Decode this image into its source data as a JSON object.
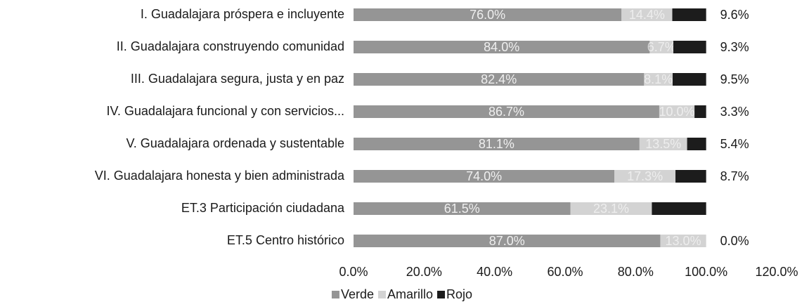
{
  "chart_data": {
    "type": "stacked-bar-horizontal",
    "categories": [
      "I. Guadalajara próspera e incluyente",
      "II. Guadalajara construyendo comunidad",
      "III. Guadalajara segura, justa y en paz",
      "IV. Guadalajara funcional y con servicios...",
      "V. Guadalajara ordenada y sustentable",
      "VI. Guadalajara honesta y bien administrada",
      "ET.3 Participación ciudadana",
      "ET.5 Centro histórico"
    ],
    "series": [
      {
        "name": "Verde",
        "color": "#959595",
        "values": [
          76.0,
          84.0,
          82.4,
          86.7,
          81.1,
          74.0,
          61.5,
          87.0
        ],
        "value_labels": [
          "76.0%",
          "84.0%",
          "82.4%",
          "86.7%",
          "81.1%",
          "74.0%",
          "61.5%",
          "87.0%"
        ]
      },
      {
        "name": "Amarillo",
        "color": "#d3d3d3",
        "values": [
          14.4,
          6.7,
          8.1,
          10.0,
          13.5,
          17.3,
          23.1,
          13.0
        ],
        "value_labels": [
          "14.4%",
          "6.7%",
          "8.1%",
          "10.0%",
          "13.5%",
          "17.3%",
          "23.1%",
          "13.0%"
        ]
      },
      {
        "name": "Rojo",
        "color": "#1c1c1c",
        "values": [
          9.6,
          9.3,
          9.5,
          3.3,
          5.4,
          8.7,
          15.4,
          0.0
        ],
        "value_labels": [
          "9.6%",
          "9.3%",
          "9.5%",
          "3.3%",
          "5.4%",
          "8.7%",
          null,
          "0.0%"
        ]
      }
    ],
    "xlim": [
      0,
      120
    ],
    "xticks": [
      {
        "value": 0,
        "label": "0.0%"
      },
      {
        "value": 20,
        "label": "20.0%"
      },
      {
        "value": 40,
        "label": "40.0%"
      },
      {
        "value": 60,
        "label": "60.0%"
      },
      {
        "value": 80,
        "label": "80.0%"
      },
      {
        "value": 100,
        "label": "100.0%"
      },
      {
        "value": 120,
        "label": "120.0%"
      }
    ],
    "legend": "bottom"
  }
}
